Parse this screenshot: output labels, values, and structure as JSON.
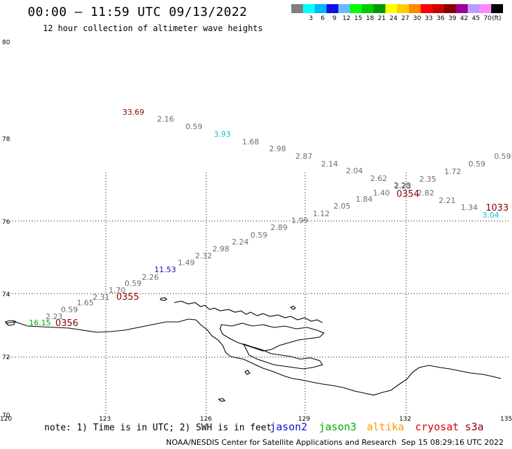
{
  "header": {
    "title": "00:00 – 11:59 UTC 09/13/2022",
    "subtitle": "12 hour collection of altimeter wave heights"
  },
  "legend": {
    "unit": "(ft)",
    "entries": [
      {
        "label": "",
        "color": "#7f7f7f"
      },
      {
        "label": "3",
        "color": "#00ffff"
      },
      {
        "label": "6",
        "color": "#00b4ff"
      },
      {
        "label": "9",
        "color": "#1010e0"
      },
      {
        "label": "12",
        "color": "#6abaff"
      },
      {
        "label": "15",
        "color": "#00ff00"
      },
      {
        "label": "18",
        "color": "#00cc00"
      },
      {
        "label": "21",
        "color": "#009900"
      },
      {
        "label": "24",
        "color": "#ffff00"
      },
      {
        "label": "27",
        "color": "#ffcc00"
      },
      {
        "label": "30",
        "color": "#ff8800"
      },
      {
        "label": "33",
        "color": "#ff0000"
      },
      {
        "label": "36",
        "color": "#cc0000"
      },
      {
        "label": "39",
        "color": "#880000"
      },
      {
        "label": "42",
        "color": "#990099"
      },
      {
        "label": "45",
        "color": "#b89cff"
      },
      {
        "label": "70",
        "color": "#ff88ff"
      },
      {
        "label": "",
        "color": "#000000"
      }
    ]
  },
  "axes": {
    "lat_labels": [
      "80",
      "78",
      "76",
      "74",
      "72",
      "70"
    ],
    "lon_labels": [
      "120",
      "123",
      "126",
      "129",
      "132",
      "135"
    ]
  },
  "tracks": {
    "upper": [
      {
        "value": "33.69",
        "color": "#880000"
      },
      {
        "value": "2.16",
        "color": "#6e6e6e"
      },
      {
        "value": "0.59",
        "color": "#6e6e6e"
      },
      {
        "value": "3.93",
        "color": "#00c8d8"
      },
      {
        "value": "1.68",
        "color": "#6e6e6e"
      },
      {
        "value": "2.98",
        "color": "#6e6e6e"
      },
      {
        "value": "2.87",
        "color": "#6e6e6e"
      },
      {
        "value": "2.14",
        "color": "#6e6e6e"
      },
      {
        "value": "2.04",
        "color": "#6e6e6e"
      },
      {
        "value": "2.62",
        "color": "#6e6e6e"
      },
      {
        "value": "2.28",
        "color": "#6e6e6e"
      },
      {
        "value": "2.35",
        "color": "#6e6e6e"
      },
      {
        "value": "1.72",
        "color": "#6e6e6e"
      },
      {
        "value": "0.59",
        "color": "#6e6e6e"
      },
      {
        "value": "0.59",
        "color": "#6e6e6e"
      }
    ],
    "lower": [
      {
        "value": "16.15",
        "color": "#00aa00"
      },
      {
        "value": "2.23",
        "color": "#6e6e6e"
      },
      {
        "value": "0.59",
        "color": "#6e6e6e"
      },
      {
        "value": "1.65",
        "color": "#6e6e6e"
      },
      {
        "value": "2.31",
        "color": "#6e6e6e"
      },
      {
        "value": "1.70",
        "color": "#6e6e6e"
      },
      {
        "value": "0.59",
        "color": "#6e6e6e"
      },
      {
        "value": "2.26",
        "color": "#6e6e6e"
      },
      {
        "value": "11.53",
        "color": "#1010b0"
      },
      {
        "value": "1.49",
        "color": "#6e6e6e"
      },
      {
        "value": "2.32",
        "color": "#6e6e6e"
      },
      {
        "value": "2.98",
        "color": "#6e6e6e"
      },
      {
        "value": "2.24",
        "color": "#6e6e6e"
      },
      {
        "value": "0.59",
        "color": "#6e6e6e"
      },
      {
        "value": "2.89",
        "color": "#6e6e6e"
      },
      {
        "value": "1.99",
        "color": "#6e6e6e"
      },
      {
        "value": "1.12",
        "color": "#6e6e6e"
      },
      {
        "value": "2.05",
        "color": "#6e6e6e"
      },
      {
        "value": "1.84",
        "color": "#6e6e6e"
      },
      {
        "value": "1.40",
        "color": "#6e6e6e"
      },
      {
        "value": "2.23",
        "color": "#6e6e6e"
      },
      {
        "value": "2.82",
        "color": "#6e6e6e"
      },
      {
        "value": "2.21",
        "color": "#6e6e6e"
      },
      {
        "value": "1.34",
        "color": "#6e6e6e"
      },
      {
        "value": "3.04",
        "color": "#00c8d8"
      }
    ]
  },
  "pass_times": [
    "0355",
    "0356",
    "0354",
    "1033"
  ],
  "footer": {
    "note": "note: 1) Time is in UTC; 2) SWH is in feet",
    "satellites": [
      {
        "name": "jason2",
        "color": "#1010dd"
      },
      {
        "name": "jason3",
        "color": "#00aa00"
      },
      {
        "name": "altika",
        "color": "#ff9900"
      },
      {
        "name": "cryosat",
        "color": "#dd0000"
      },
      {
        "name": "s3a",
        "color": "#990000"
      }
    ],
    "credit": "NOAA/NESDIS Center for Satellite Applications and Research",
    "timestamp": "Sep 15 08:29:16 UTC 2022"
  }
}
